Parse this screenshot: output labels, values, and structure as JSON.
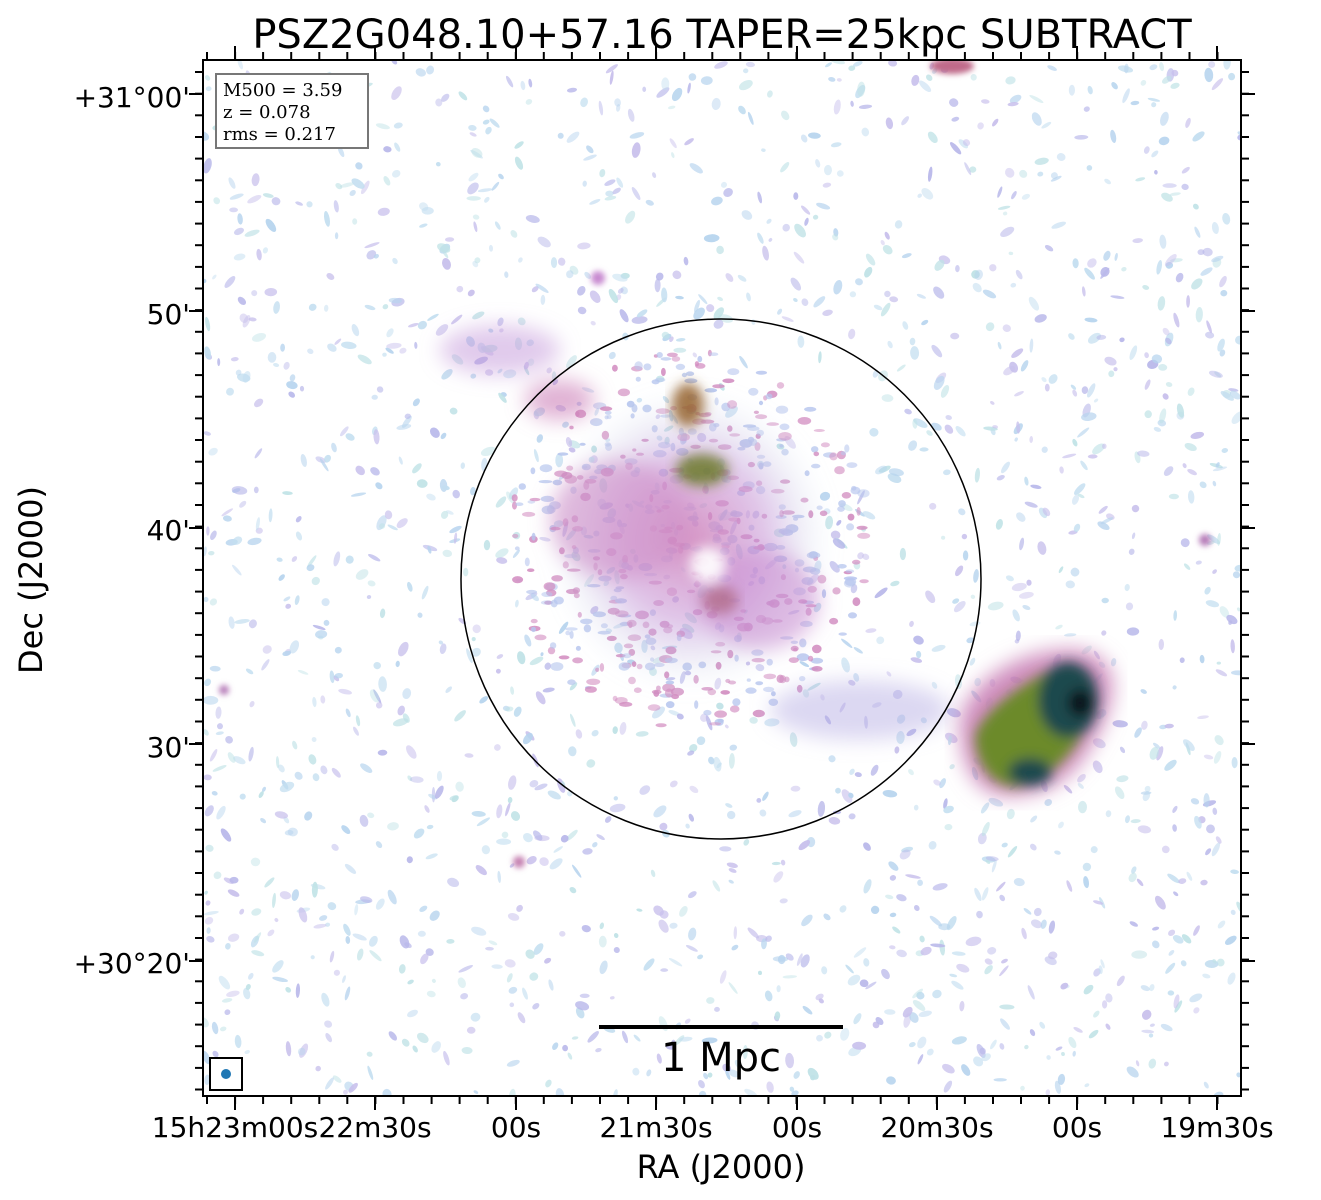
{
  "figure": {
    "title": "PSZ2G048.10+57.16 TAPER=25kpc SUBTRACT",
    "xlabel": "RA (J2000)",
    "ylabel": "Dec (J2000)",
    "colormap": "cubehelix-like (light blue → purple → pink → green → dark)",
    "info_box": {
      "lines": [
        "M500 = 3.59",
        "z = 0.078",
        "rms = 0.217"
      ]
    },
    "scale_bar": {
      "label": "1 Mpc"
    },
    "x_ticks": [
      "15h23m00s",
      "22m30s",
      "00s",
      "21m30s",
      "00s",
      "20m30s",
      "00s",
      "19m30s"
    ],
    "y_ticks": [
      "+31°00'",
      "50'",
      "40'",
      "30'",
      "+30°20'"
    ],
    "beam_color": "#1f77b4",
    "circle_color": "#000000"
  }
}
